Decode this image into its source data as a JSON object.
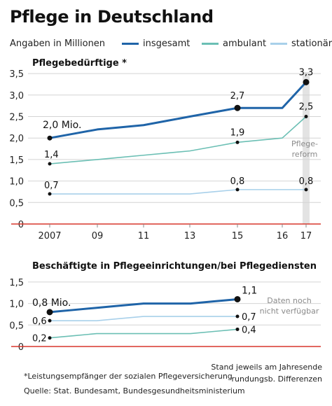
{
  "header": {
    "title": "Pflege in Deutschland",
    "subtitle": "Angaben in Millionen"
  },
  "legend": [
    {
      "label": "insgesamt",
      "color": "#1f64a8"
    },
    {
      "label": "ambulant",
      "color": "#6bbfb4"
    },
    {
      "label": "stationär",
      "color": "#a8d0ea"
    }
  ],
  "chart_data": [
    {
      "type": "line",
      "title": "Pflegebedürftige *",
      "x_tick_labels": [
        "2007",
        "09",
        "11",
        "13",
        "15",
        "16",
        "17"
      ],
      "x": [
        2007,
        2008,
        2009,
        2010,
        2011,
        2012,
        2013,
        2014,
        2015,
        2016,
        2017
      ],
      "ylim": [
        0,
        3.5
      ],
      "y_ticks": [
        "0",
        "0,5",
        "1,0",
        "1,5",
        "2,0",
        "2,5",
        "3,0",
        "3,5"
      ],
      "series": [
        {
          "name": "insgesamt",
          "color": "#1f64a8",
          "values": [
            2.0,
            2.1,
            2.2,
            2.25,
            2.3,
            2.4,
            2.5,
            2.6,
            2.7,
            2.7,
            3.3
          ]
        },
        {
          "name": "ambulant",
          "color": "#6bbfb4",
          "values": [
            1.4,
            1.45,
            1.5,
            1.55,
            1.6,
            1.65,
            1.7,
            1.8,
            1.9,
            2.0,
            2.5
          ]
        },
        {
          "name": "stationär",
          "color": "#a8d0ea",
          "values": [
            0.7,
            0.7,
            0.7,
            0.7,
            0.7,
            0.7,
            0.7,
            0.75,
            0.8,
            0.8,
            0.8
          ]
        }
      ],
      "data_labels": [
        "2,0 Mio.",
        "1,4",
        "0,7",
        "2,7",
        "1,9",
        "0,8",
        "3,3",
        "2,5",
        "0,8"
      ],
      "annotation": [
        "Pflege-",
        "reform"
      ]
    },
    {
      "type": "line",
      "title": "Beschäftigte in Pflegeeinrichtungen/bei Pflegediensten",
      "x": [
        2007,
        2008,
        2009,
        2010,
        2011,
        2012,
        2013,
        2014,
        2015
      ],
      "ylim": [
        0,
        1.5
      ],
      "y_ticks": [
        "0",
        "0,5",
        "1,0",
        "1,5"
      ],
      "series": [
        {
          "name": "insgesamt",
          "color": "#1f64a8",
          "values": [
            0.8,
            0.85,
            0.9,
            0.95,
            1.0,
            1.0,
            1.0,
            1.05,
            1.1
          ]
        },
        {
          "name": "stationär",
          "color": "#a8d0ea",
          "values": [
            0.6,
            0.6,
            0.6,
            0.65,
            0.7,
            0.7,
            0.7,
            0.7,
            0.7
          ]
        },
        {
          "name": "ambulant",
          "color": "#6bbfb4",
          "values": [
            0.2,
            0.25,
            0.3,
            0.3,
            0.3,
            0.3,
            0.3,
            0.35,
            0.4
          ]
        }
      ],
      "data_labels": [
        "0,8 Mio.",
        "0,6",
        "0,2",
        "1,1",
        "0,7",
        "0,4"
      ],
      "annotation": [
        "Daten noch",
        "nicht verfügbar"
      ]
    }
  ],
  "footer": {
    "note": "*Leistungsempfänger der sozialen Pflegeversicherung",
    "source": "Quelle: Stat. Bundesamt, Bundesgesundheitsministerium",
    "stand": "Stand jeweils am Jahresende",
    "rounding": "rundungsb. Differenzen"
  }
}
